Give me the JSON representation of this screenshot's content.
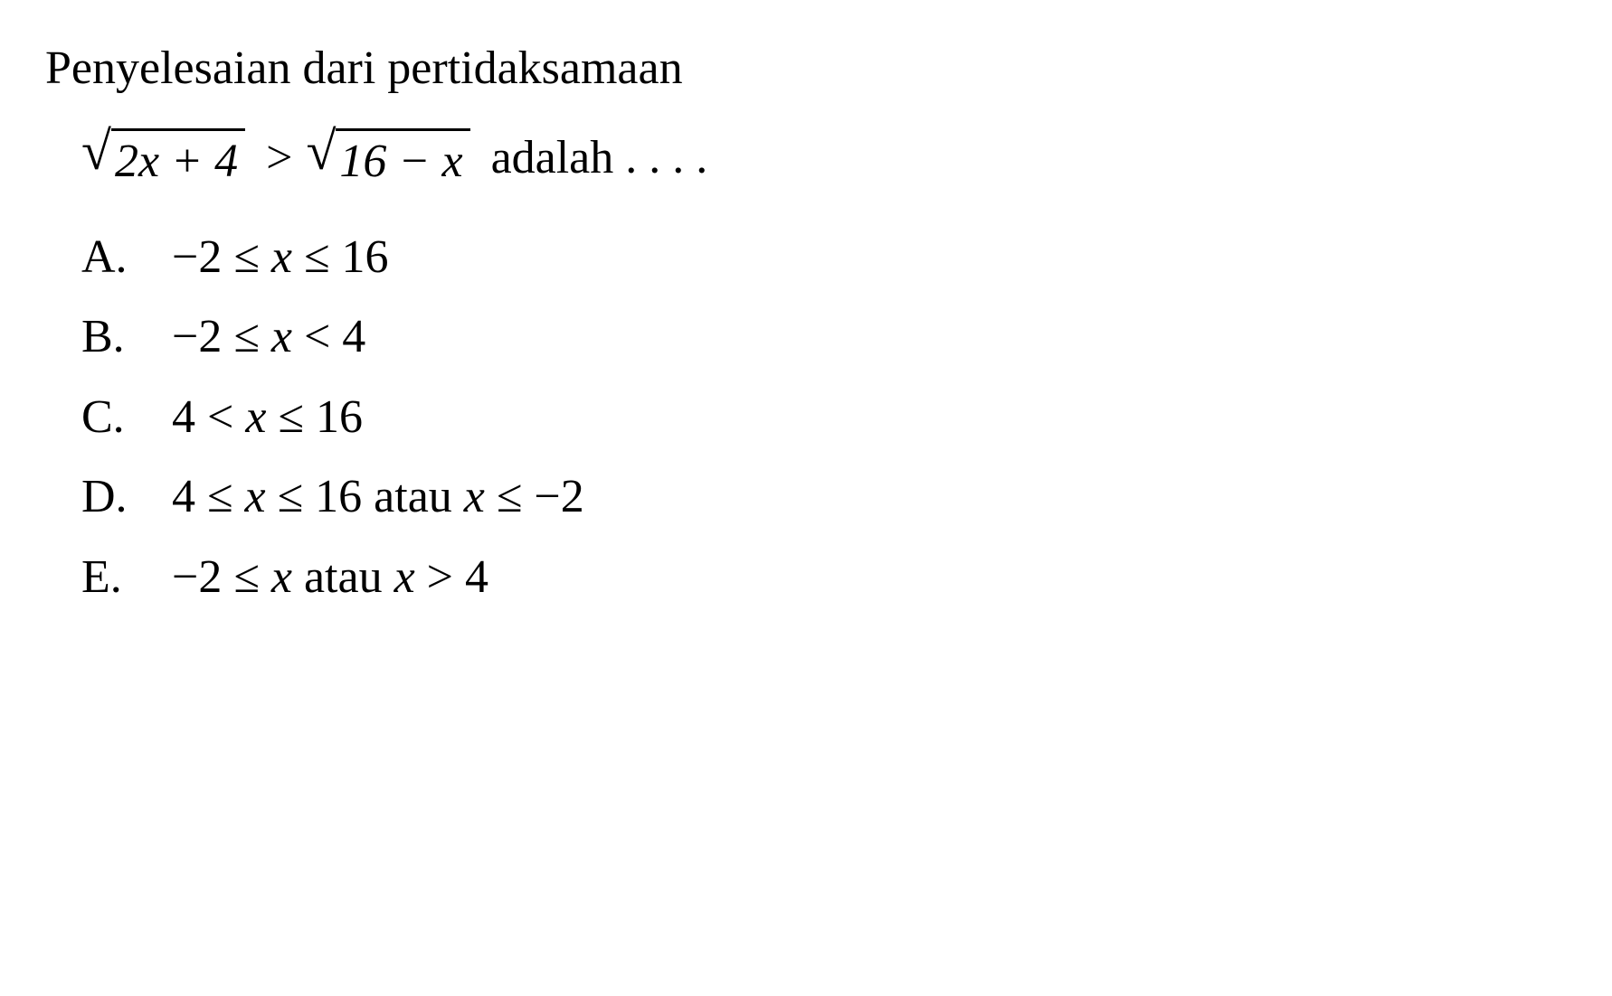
{
  "question": {
    "intro": "Penyelesaian dari pertidaksamaan",
    "sqrt1_content": "2x + 4",
    "operator": ">",
    "sqrt2_content": "16 − x",
    "suffix": "adalah . . . ."
  },
  "options": [
    {
      "label": "A.",
      "content": "−2 ≤ x ≤ 16"
    },
    {
      "label": "B.",
      "content": "−2 ≤ x < 4"
    },
    {
      "label": "C.",
      "content": "4 < x ≤ 16"
    },
    {
      "label": "D.",
      "content": "4 ≤ x ≤ 16 atau x ≤ −2"
    },
    {
      "label": "E.",
      "content": "−2 ≤ x atau x > 4"
    }
  ],
  "styling": {
    "background_color": "#ffffff",
    "text_color": "#000000",
    "font_family": "Times New Roman",
    "base_fontsize": 52,
    "sqrt_border_width": 3
  }
}
